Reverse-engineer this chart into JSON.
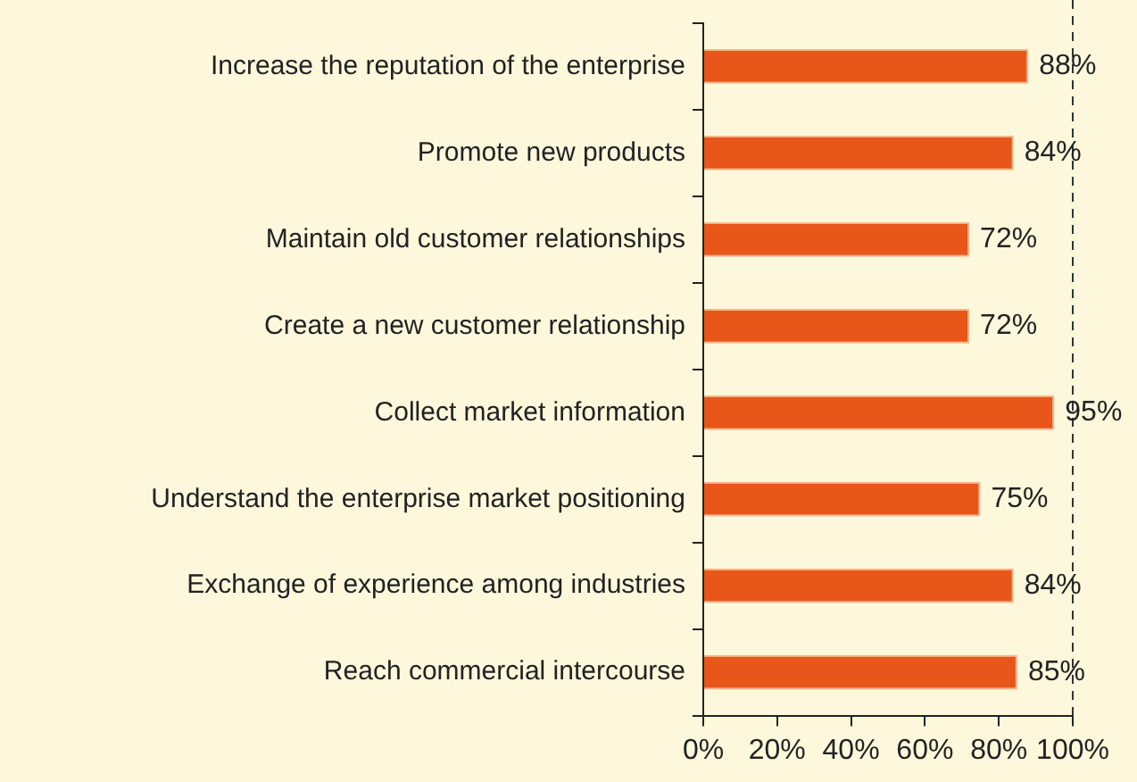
{
  "chart_data": {
    "type": "bar",
    "orientation": "horizontal",
    "categories": [
      "Increase the reputation of the enterprise",
      "Promote new products",
      "Maintain old customer relationships",
      "Create a new customer relationship",
      "Collect market information",
      "Understand the enterprise market positioning",
      "Exchange of experience among industries",
      "Reach commercial intercourse"
    ],
    "values": [
      88,
      84,
      72,
      72,
      95,
      75,
      84,
      85
    ],
    "value_labels": [
      "88%",
      "84%",
      "72%",
      "72%",
      "95%",
      "75%",
      "84%",
      "85%"
    ],
    "color": "#e8561a",
    "xlim": [
      0,
      100
    ],
    "xticks": [
      {
        "value": 0,
        "label": "0%"
      },
      {
        "value": 20,
        "label": "20%"
      },
      {
        "value": 40,
        "label": "40%"
      },
      {
        "value": 60,
        "label": "60%"
      },
      {
        "value": 80,
        "label": "80%"
      },
      {
        "value": 100,
        "label": "100%"
      }
    ],
    "ref_lines": [
      {
        "axis": "x",
        "value": 100,
        "line_style": "dashed",
        "color": "#333333"
      }
    ],
    "grid": false,
    "legend": false
  }
}
